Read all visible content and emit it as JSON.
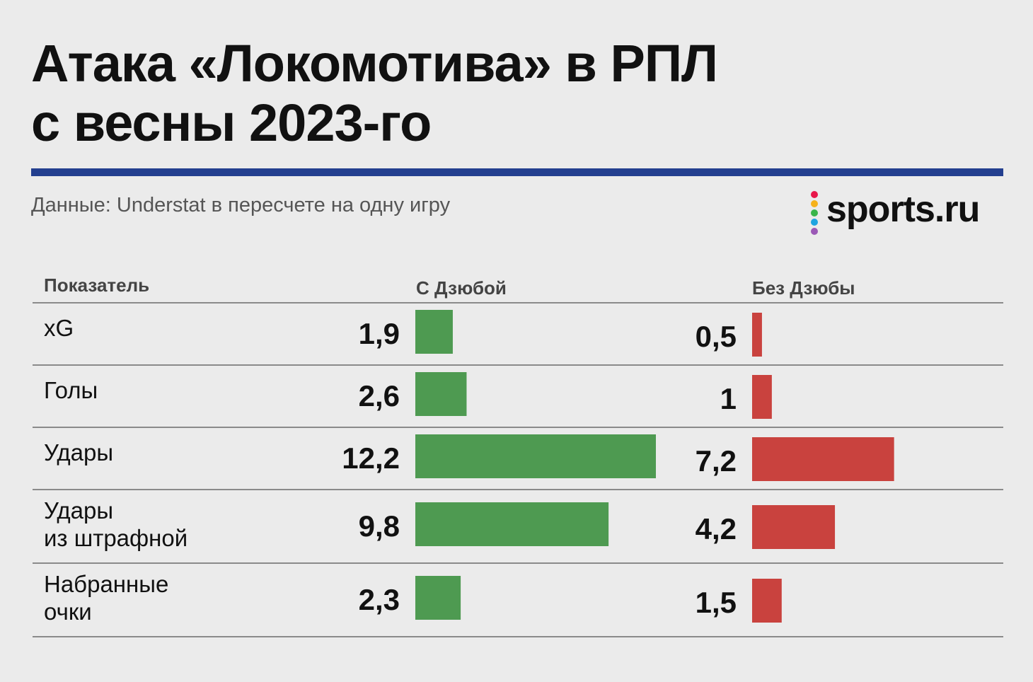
{
  "title_line1": "Атака «Локомотива» в РПЛ",
  "title_line2": "с весны 2023-го",
  "subtitle": "Данные: Understat в пересчете на одну игру",
  "logo": {
    "text": "sports.ru",
    "dot_colors": [
      "#e8174a",
      "#f6b21b",
      "#39b54a",
      "#1ea4e0",
      "#9b59b6"
    ]
  },
  "colors": {
    "with_dzyuba": "#4e9a51",
    "without_dzyuba": "#c9423e",
    "accent_rule": "#233f8f",
    "row_divider": "#8a8a8a"
  },
  "chart_data": {
    "type": "bar",
    "orientation": "horizontal",
    "header": {
      "indicator": "Показатель",
      "with": "С Дзюбой",
      "without": "Без Дзюбы"
    },
    "categories": [
      "xG",
      "Голы",
      "Удары",
      "Удары\nиз штрафной",
      "Набранные\nочки"
    ],
    "series": [
      {
        "name": "С Дзюбой",
        "values": [
          1.9,
          2.6,
          12.2,
          9.8,
          2.3
        ],
        "labels": [
          "1,9",
          "2,6",
          "12,2",
          "9,8",
          "2,3"
        ]
      },
      {
        "name": "Без Дзюбы",
        "values": [
          0.5,
          1,
          7.2,
          4.2,
          1.5
        ],
        "labels": [
          "0,5",
          "1",
          "7,2",
          "4,2",
          "1,5"
        ]
      }
    ]
  }
}
